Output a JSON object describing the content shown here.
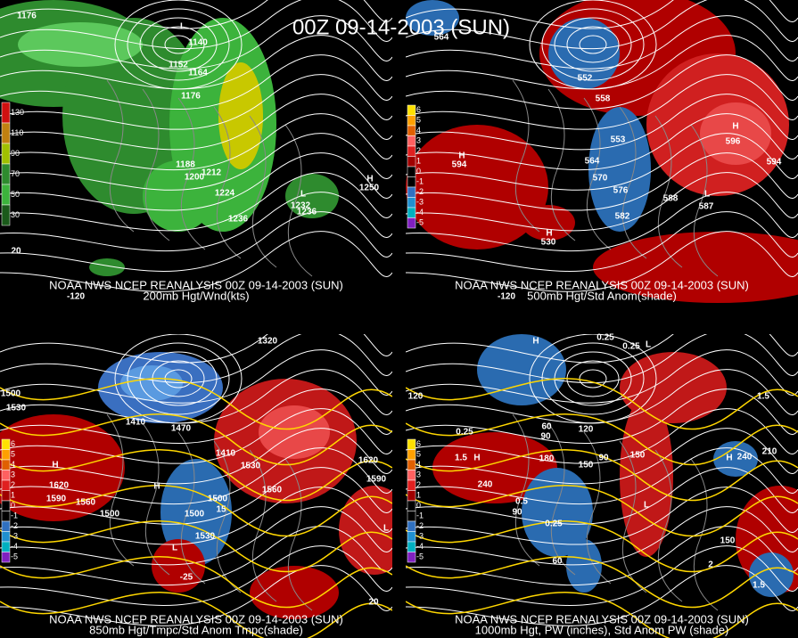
{
  "title": "00Z 09-14-2003 (SUN)",
  "panels": [
    {
      "header": "NOAA NWS NCEP REANALYSIS 00Z 09-14-2003 (SUN)",
      "subtitle": "200mb Hgt/Wnd(kts)",
      "legend": [
        130,
        110,
        90,
        70,
        50,
        30
      ],
      "labels": [
        "L",
        "1140",
        "1152",
        "1164",
        "1176",
        "1188",
        "1200",
        "1212",
        "1224",
        "1236",
        "L",
        "1232",
        "1236",
        "H",
        "1250",
        "1176",
        "-120",
        "20"
      ]
    },
    {
      "header": "NOAA NWS NCEP REANALYSIS 00Z 09-14-2003 (SUN)",
      "subtitle": "500mb Hgt/Std Anom(shade)",
      "legend": [
        6,
        5,
        4,
        3,
        2,
        1,
        0,
        -1,
        -2,
        -3,
        -4,
        -5
      ],
      "labels": [
        "564",
        "552",
        "558",
        "H",
        "594",
        "553",
        "564",
        "570",
        "576",
        "582",
        "588",
        "L",
        "587",
        "H",
        "596",
        "594",
        "H",
        "530",
        "-120"
      ]
    },
    {
      "header": "NOAA NWS NCEP REANALYSIS 00Z 09-14-2003 (SUN)",
      "subtitle": "850mb Hgt/Tmpc/Std Anom Tmpc(shade)",
      "legend": [
        6,
        5,
        4,
        3,
        2,
        1,
        0,
        -1,
        -2,
        -3,
        -4,
        -5
      ],
      "labels": [
        "1500",
        "1530",
        "H",
        "1620",
        "1590",
        "1560",
        "1500",
        "1410",
        "1470",
        "1410",
        "1530",
        "1560",
        "H",
        "1500",
        "1500",
        "1530",
        "15",
        "L",
        "-25",
        "1620",
        "1590",
        "L",
        "20",
        "1320"
      ]
    },
    {
      "header": "NOAA NWS NCEP REANALYSIS 00Z 09-14-2003 (SUN)",
      "subtitle": "1000mb Hgt, PW (inches), Std Anom PW (shade)",
      "legend": [
        6,
        5,
        4,
        3,
        2,
        1,
        0,
        -1,
        -2,
        -3,
        -4,
        -5
      ],
      "labels": [
        "0.25",
        "0.25",
        "H",
        "L",
        "120",
        "60",
        "90",
        "120",
        "0.25",
        "180",
        "150",
        "90",
        "150",
        "240",
        "1.5",
        "H",
        "0.5",
        "90",
        "0.25",
        "L",
        "H",
        "210",
        "240",
        "150",
        "1.5",
        "2",
        "60",
        "1.5"
      ]
    }
  ]
}
